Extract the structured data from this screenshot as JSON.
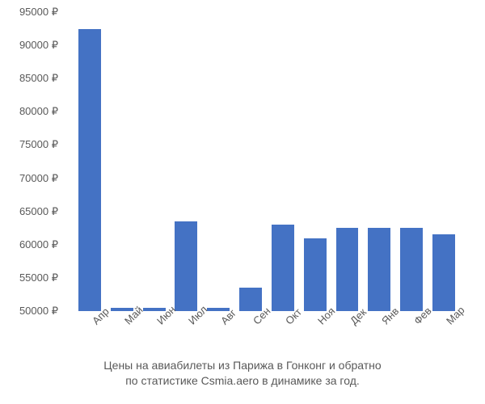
{
  "chart": {
    "type": "bar",
    "categories": [
      "Апр",
      "Май",
      "Июн",
      "Июл",
      "Авг",
      "Сен",
      "Окт",
      "Ноя",
      "Дек",
      "Янв",
      "Фев",
      "Мар"
    ],
    "values": [
      92500,
      50500,
      50500,
      63500,
      50500,
      53500,
      63000,
      61000,
      62500,
      62500,
      62500,
      61500
    ],
    "bar_color": "#4472c4",
    "background_color": "#ffffff",
    "ylim": [
      50000,
      95000
    ],
    "ytick_step": 5000,
    "yticks": [
      50000,
      55000,
      60000,
      65000,
      70000,
      75000,
      80000,
      85000,
      90000,
      95000
    ],
    "ytick_labels": [
      "50000 ₽",
      "55000 ₽",
      "60000 ₽",
      "65000 ₽",
      "70000 ₽",
      "75000 ₽",
      "80000 ₽",
      "85000 ₽",
      "90000 ₽",
      "95000 ₽"
    ],
    "currency_symbol": "₽",
    "axis_label_color": "#595959",
    "axis_label_fontsize": 13,
    "bar_width_ratio": 0.7,
    "x_tick_rotation": -45
  },
  "caption": {
    "line1": "Цены на авиабилеты из Парижа в Гонконг и обратно",
    "line2": "по статистике Csmia.aero в динамике за год.",
    "color": "#595959",
    "fontsize": 14
  }
}
